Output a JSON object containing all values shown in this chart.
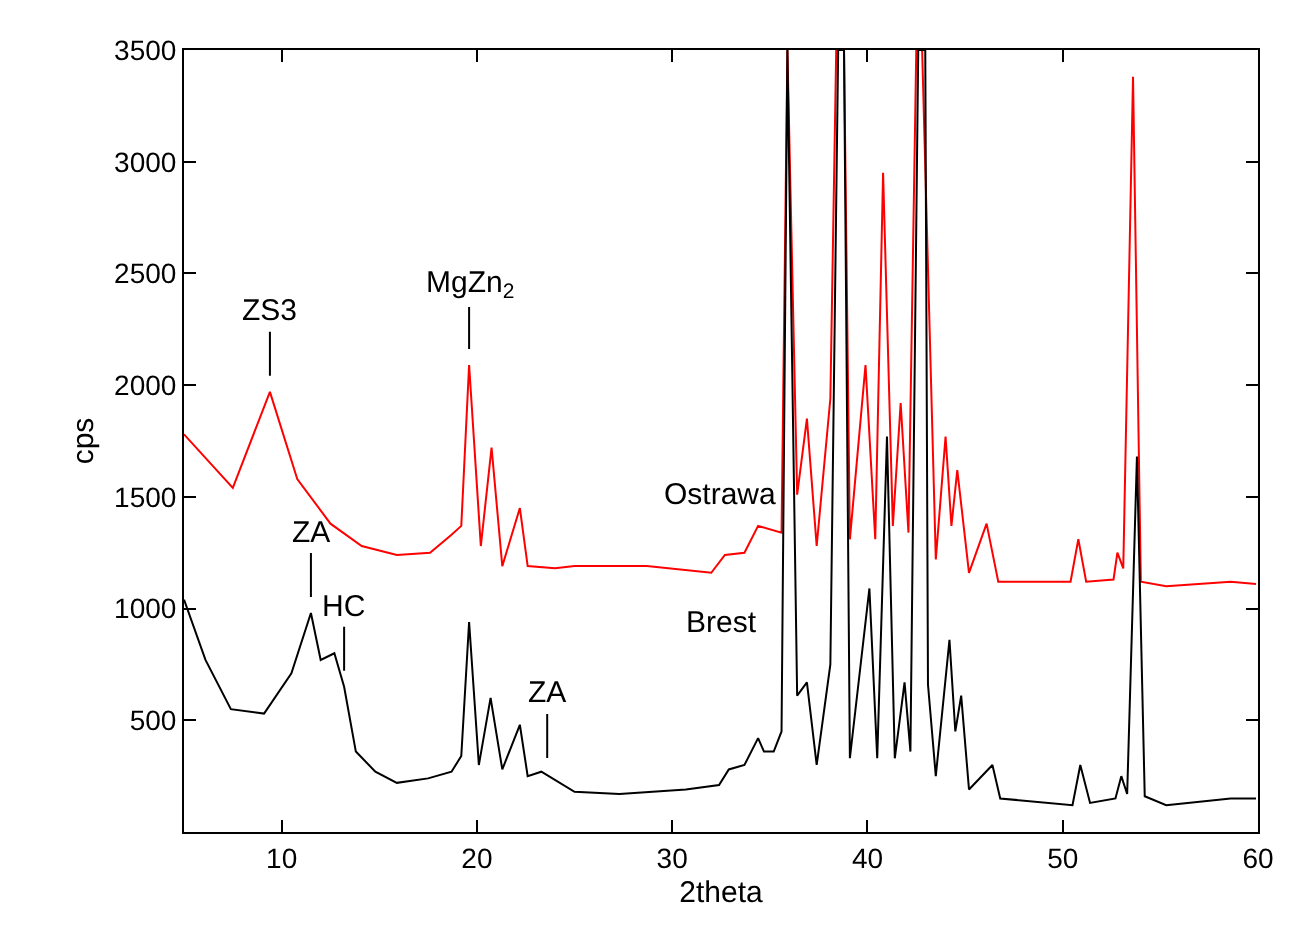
{
  "chart_data": {
    "type": "line",
    "xlabel": "2theta",
    "ylabel": "cps",
    "xlim": [
      5,
      60
    ],
    "ylim": [
      0,
      3500
    ],
    "xticks": [
      10,
      20,
      30,
      40,
      50,
      60
    ],
    "yticks": [
      500,
      1000,
      1500,
      2000,
      2500,
      3000,
      3500
    ],
    "grid": false,
    "legend": false,
    "marker": "none",
    "line_style": "solid",
    "series": [
      {
        "name": "Ostrawa",
        "color": "#ff0000",
        "x": [
          5,
          7.5,
          9.4,
          10.8,
          12.5,
          14.1,
          15.9,
          17.6,
          18.7,
          19.2,
          19.6,
          20.2,
          20.75,
          21.3,
          22.2,
          22.6,
          24,
          25,
          28.7,
          32,
          32.7,
          33.7,
          34.4,
          35.6,
          35.9,
          36.4,
          36.9,
          37.4,
          38.1,
          38.4,
          38.8,
          39.1,
          39.9,
          40.4,
          40.8,
          41.3,
          41.7,
          42.1,
          42.5,
          42.8,
          43.5,
          44.0,
          44.3,
          44.6,
          45.2,
          46.1,
          46.7,
          50.4,
          50.8,
          51.2,
          52.6,
          52.8,
          53.1,
          53.6,
          54.0,
          55.3,
          58.6,
          59.9
        ],
        "values": [
          1780,
          1540,
          1970,
          1580,
          1380,
          1280,
          1240,
          1250,
          1330,
          1370,
          2090,
          1280,
          1720,
          1190,
          1450,
          1190,
          1180,
          1190,
          1190,
          1160,
          1240,
          1250,
          1370,
          1340,
          3500,
          1510,
          1850,
          1280,
          1940,
          3500,
          3500,
          1310,
          2090,
          1310,
          2950,
          1370,
          1920,
          1340,
          3500,
          3500,
          1220,
          1770,
          1370,
          1620,
          1160,
          1380,
          1120,
          1120,
          1310,
          1120,
          1130,
          1250,
          1180,
          3380,
          1120,
          1100,
          1120,
          1110
        ]
      },
      {
        "name": "Brest",
        "color": "#000000",
        "x": [
          5,
          6.1,
          7.4,
          9.1,
          10.5,
          11.5,
          12.0,
          12.7,
          13.2,
          13.8,
          14.8,
          15.9,
          17.5,
          18.7,
          19.2,
          19.6,
          20.1,
          20.7,
          21.3,
          22.2,
          22.6,
          23.3,
          25.0,
          27.3,
          30.7,
          32.4,
          32.9,
          33.7,
          34.4,
          34.7,
          35.2,
          35.6,
          35.9,
          36.4,
          36.9,
          37.4,
          38.1,
          38.5,
          38.8,
          39.1,
          40.1,
          40.5,
          41.0,
          41.4,
          41.9,
          42.2,
          42.6,
          42.96,
          43.1,
          43.5,
          44.2,
          44.5,
          44.8,
          45.2,
          46.4,
          46.8,
          50.5,
          50.9,
          51.4,
          52.7,
          53.0,
          53.3,
          53.8,
          54.2,
          55.3,
          58.6,
          59.9
        ],
        "values": [
          1040,
          770,
          550,
          530,
          710,
          980,
          770,
          800,
          650,
          360,
          270,
          220,
          240,
          270,
          340,
          940,
          300,
          600,
          280,
          480,
          250,
          270,
          180,
          170,
          190,
          210,
          280,
          300,
          420,
          360,
          360,
          450,
          3500,
          610,
          670,
          300,
          750,
          3500,
          3500,
          330,
          1090,
          330,
          1770,
          330,
          670,
          360,
          3500,
          3500,
          660,
          250,
          860,
          450,
          610,
          190,
          300,
          150,
          120,
          300,
          130,
          150,
          250,
          170,
          1680,
          160,
          120,
          150,
          150
        ]
      }
    ],
    "annotations": [
      {
        "text": "ZS3",
        "x": 9.4,
        "y": 1970
      },
      {
        "text": "MgZn$_{2}$",
        "x": 19.6,
        "y": 2090
      },
      {
        "text": "ZA",
        "x": 11.5,
        "y": 980
      },
      {
        "text": "HC",
        "x": 13.2,
        "y": 650
      },
      {
        "text": "ZA",
        "x": 23.6,
        "y": 260
      }
    ]
  }
}
